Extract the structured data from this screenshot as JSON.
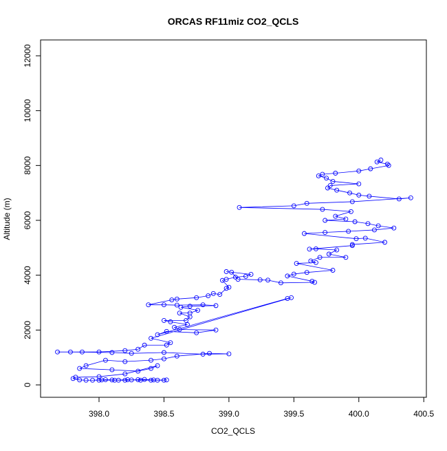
{
  "chart_data": {
    "type": "line",
    "title": "ORCAS RF11miz CO2_QCLS",
    "x_label": "CO2_QCLS",
    "y_label": "Altitude (m)",
    "color": "#0000ff",
    "markers": "open-circle",
    "xlim": [
      397.55,
      400.52
    ],
    "ylim": [
      -452,
      12578
    ],
    "xticks": [
      {
        "value": 398,
        "label": "398.0"
      },
      398.5,
      {
        "value": 399,
        "label": "399.0"
      },
      399.5,
      {
        "value": 400,
        "label": "400.0"
      },
      400.5
    ],
    "yticks": [
      0,
      2000,
      4000,
      6000,
      8000,
      10000,
      12000
    ],
    "x": [
      400.17,
      400.14,
      400.22,
      400.23,
      400.09,
      400.0,
      399.82,
      399.72,
      399.69,
      399.75,
      399.8,
      400.0,
      399.78,
      399.76,
      399.83,
      399.93,
      400.0,
      400.08,
      400.31,
      400.4,
      399.95,
      399.6,
      399.5,
      399.08,
      399.72,
      399.94,
      399.82,
      399.9,
      399.74,
      399.97,
      400.07,
      400.15,
      400.27,
      400.12,
      399.92,
      399.74,
      399.58,
      399.98,
      400.05,
      400.2,
      399.95,
      399.95,
      399.62,
      399.67,
      399.83,
      399.77,
      399.9,
      399.7,
      399.63,
      399.67,
      399.52,
      399.8,
      399.6,
      399.5,
      399.45,
      399.64,
      399.66,
      399.4,
      399.3,
      399.24,
      399.07,
      399.02,
      398.98,
      399.17,
      399.13,
      399.05,
      398.98,
      398.95,
      399.0,
      398.98,
      398.93,
      398.88,
      398.84,
      398.75,
      398.6,
      398.56,
      398.38,
      398.5,
      398.6,
      398.8,
      398.9,
      398.7,
      398.63,
      398.76,
      398.7,
      398.62,
      398.7,
      398.67,
      398.5,
      398.55,
      398.68,
      398.58,
      398.62,
      398.9,
      398.75,
      398.52,
      398.45,
      399.45,
      399.48,
      398.4,
      398.55,
      398.52,
      398.35,
      398.3,
      398.2,
      398.0,
      397.87,
      397.68,
      397.78,
      398.1,
      398.25,
      398.5,
      398.8,
      399.0,
      398.85,
      398.6,
      398.5,
      398.4,
      398.2,
      398.05,
      397.9,
      397.85,
      398.1,
      398.3,
      398.4,
      398.45,
      398.2,
      398.0,
      397.82,
      397.8,
      397.85,
      397.9,
      398.0,
      398.1,
      398.2,
      398.3,
      398.4,
      398.52,
      398.45,
      398.35,
      398.25,
      398.15,
      398.05,
      397.95,
      398.02,
      398.12,
      398.22,
      398.32,
      398.42,
      398.5
    ],
    "values": [
      8200,
      8130,
      8050,
      8000,
      7880,
      7800,
      7720,
      7680,
      7620,
      7540,
      7420,
      7330,
      7270,
      7180,
      7100,
      7000,
      6920,
      6880,
      6780,
      6820,
      6680,
      6620,
      6530,
      6470,
      6400,
      6320,
      6150,
      6050,
      6000,
      5950,
      5880,
      5800,
      5720,
      5650,
      5600,
      5560,
      5520,
      5330,
      5350,
      5200,
      5120,
      5080,
      4950,
      4960,
      4920,
      4770,
      4650,
      4650,
      4520,
      4460,
      4430,
      4180,
      4100,
      4040,
      3970,
      3780,
      3740,
      3720,
      3820,
      3830,
      3850,
      4110,
      4130,
      4030,
      3960,
      3930,
      3850,
      3810,
      3560,
      3520,
      3300,
      3330,
      3250,
      3180,
      3130,
      3100,
      2920,
      2920,
      2910,
      2920,
      2890,
      2870,
      2830,
      2720,
      2620,
      2620,
      2480,
      2350,
      2350,
      2300,
      2200,
      2100,
      2020,
      2000,
      1900,
      1950,
      1830,
      3150,
      3180,
      1700,
      1540,
      1450,
      1450,
      1300,
      1250,
      1200,
      1200,
      1200,
      1200,
      1180,
      1150,
      1180,
      1120,
      1130,
      1150,
      1050,
      950,
      900,
      850,
      900,
      700,
      600,
      550,
      500,
      600,
      700,
      400,
      300,
      280,
      230,
      180,
      170,
      170,
      180,
      170,
      190,
      170,
      180,
      170,
      200,
      180,
      170,
      190,
      170,
      180,
      170,
      190,
      170,
      180,
      170
    ]
  }
}
